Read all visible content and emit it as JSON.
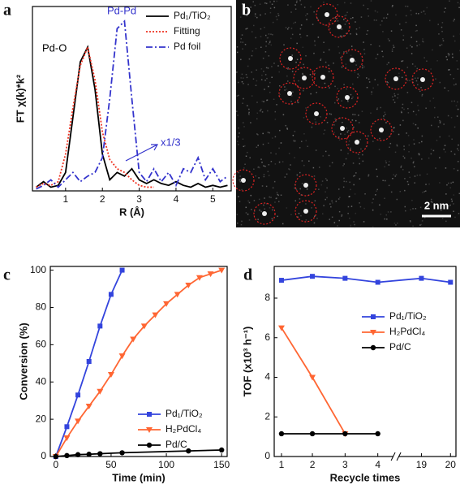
{
  "chart_data": [
    {
      "type": "line",
      "panel_label": "a",
      "xlabel": "R (Å)",
      "ylabel": "FT χ(k)*k²",
      "x": [
        0.2,
        0.4,
        0.6,
        0.8,
        1.0,
        1.2,
        1.4,
        1.6,
        1.8,
        2.0,
        2.2,
        2.4,
        2.6,
        2.8,
        3.0,
        3.2,
        3.4,
        3.6,
        3.8,
        4.0,
        4.2,
        4.4,
        4.6,
        4.8,
        5.0,
        5.2,
        5.4
      ],
      "xlim": [
        0.1,
        5.5
      ],
      "xticks": [
        1,
        2,
        3,
        4,
        5
      ],
      "ylim": [
        0,
        1
      ],
      "legend": "upper right",
      "series": [
        {
          "name": "Pd₁/TiO₂",
          "color": "#000000",
          "dash": "solid",
          "values": [
            0.02,
            0.05,
            0.02,
            0.03,
            0.1,
            0.4,
            0.7,
            0.78,
            0.55,
            0.2,
            0.06,
            0.1,
            0.08,
            0.12,
            0.06,
            0.04,
            0.06,
            0.04,
            0.03,
            0.05,
            0.03,
            0.02,
            0.04,
            0.02,
            0.03,
            0.02,
            0.03
          ]
        },
        {
          "name": "Fitting",
          "color": "#ee3322",
          "dash": "dotted",
          "values": [
            0.02,
            0.04,
            0.03,
            0.05,
            0.2,
            0.45,
            0.68,
            0.78,
            0.6,
            0.32,
            0.17,
            0.12,
            0.1,
            0.06,
            0.03,
            0.02,
            0.02,
            null,
            null,
            null,
            null,
            null,
            null,
            null,
            null,
            null,
            null
          ]
        },
        {
          "name": "Pd foil",
          "color": "#3333cc",
          "dash": "dashdot",
          "values": [
            0.01,
            0.03,
            0.06,
            0.02,
            0.06,
            0.1,
            0.05,
            0.08,
            0.1,
            0.18,
            0.5,
            0.88,
            0.92,
            0.5,
            0.1,
            0.05,
            0.12,
            0.05,
            0.1,
            0.03,
            0.12,
            0.1,
            0.18,
            0.06,
            0.12,
            0.05,
            0.08
          ]
        }
      ],
      "annotations": [
        "Pd-O",
        "Pd-Pd",
        "x1/3"
      ]
    },
    {
      "type": "image",
      "panel_label": "b",
      "scale_bar": "2 nm"
    },
    {
      "type": "line",
      "panel_label": "c",
      "xlabel": "Time (min)",
      "ylabel": "Conversion (%)",
      "xlim": [
        -5,
        155
      ],
      "xticks": [
        0,
        50,
        100,
        150
      ],
      "ylim": [
        0,
        102
      ],
      "yticks": [
        0,
        20,
        40,
        60,
        80,
        100
      ],
      "legend": "lower right",
      "series": [
        {
          "name": "Pd₁/TiO₂",
          "color": "#3344dd",
          "marker": "square",
          "x": [
            0,
            10,
            20,
            30,
            40,
            50,
            60
          ],
          "values": [
            0,
            16,
            33,
            51,
            70,
            87,
            100
          ]
        },
        {
          "name": "H₂PdCl₄",
          "color": "#ff6633",
          "marker": "triangle",
          "x": [
            0,
            10,
            20,
            30,
            40,
            50,
            60,
            70,
            80,
            90,
            100,
            110,
            120,
            130,
            140,
            150
          ],
          "values": [
            0,
            10,
            19,
            27,
            35,
            44,
            54,
            63,
            70,
            76,
            82,
            87,
            92,
            96,
            98,
            100
          ]
        },
        {
          "name": "Pd/C",
          "color": "#000000",
          "marker": "circle",
          "x": [
            0,
            10,
            20,
            30,
            40,
            60,
            120,
            150
          ],
          "values": [
            0,
            0.5,
            1,
            1.2,
            1.5,
            2,
            3,
            3.5
          ]
        }
      ]
    },
    {
      "type": "line",
      "panel_label": "d",
      "xlabel": "Recycle times",
      "ylabel": "TOF (x10³ h⁻¹)",
      "categories": [
        "1",
        "2",
        "3",
        "4",
        "19",
        "20"
      ],
      "ylim": [
        0,
        9.6
      ],
      "yticks": [
        0,
        2,
        4,
        6,
        8
      ],
      "legend": "center right",
      "series": [
        {
          "name": "Pd₁/TiO₂",
          "color": "#3344dd",
          "marker": "square",
          "values": [
            8.9,
            9.1,
            9.0,
            8.8,
            9.0,
            8.8
          ]
        },
        {
          "name": "H₂PdCl₄",
          "color": "#ff6633",
          "marker": "triangle",
          "values": [
            6.5,
            4.0,
            1.15,
            null,
            null,
            null
          ]
        },
        {
          "name": "Pd/C",
          "color": "#000000",
          "marker": "circle",
          "values": [
            1.15,
            1.15,
            1.15,
            1.15,
            null,
            null
          ]
        }
      ]
    }
  ]
}
